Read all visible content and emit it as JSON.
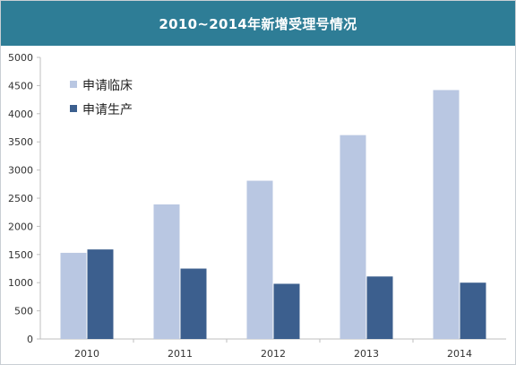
{
  "chart_data": {
    "type": "bar",
    "title": "2010~2014年新增受理号情况",
    "categories": [
      "2010",
      "2011",
      "2012",
      "2013",
      "2014"
    ],
    "series": [
      {
        "name": "申请临床",
        "values": [
          1530,
          2390,
          2810,
          3620,
          4420
        ],
        "color": "#b9c7e2"
      },
      {
        "name": "申请生产",
        "values": [
          1590,
          1250,
          980,
          1110,
          1000
        ],
        "color": "#3c5f8e"
      }
    ],
    "ylim": [
      0,
      5000
    ],
    "yticks": [
      0,
      500,
      1000,
      1500,
      2000,
      2500,
      3000,
      3500,
      4000,
      4500,
      5000
    ],
    "xlabel": "",
    "ylabel": "",
    "grid": false,
    "legend_position": "top-left"
  },
  "colors": {
    "title_bar": "#2e7d96",
    "title_text": "#ffffff",
    "axis": "#bfbfbf"
  }
}
